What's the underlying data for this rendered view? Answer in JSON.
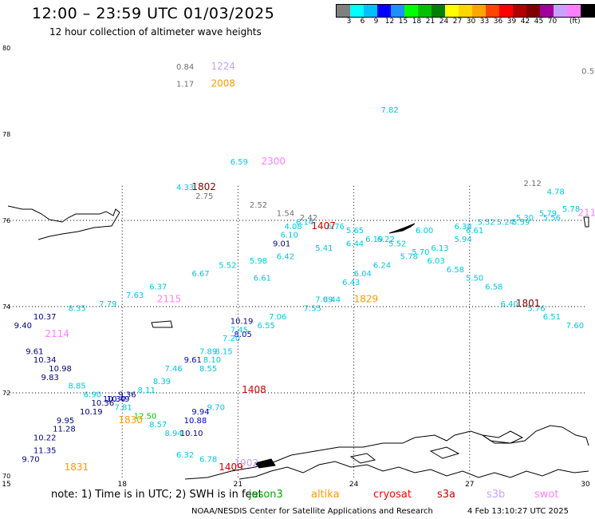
{
  "title": "12:00 – 23:59 UTC 01/03/2025",
  "subtitle": "12 hour collection of altimeter wave heights",
  "legend": {
    "colors": [
      "#808080",
      "#00ffff",
      "#00bfff",
      "#0000ff",
      "#1e90ff",
      "#00ff00",
      "#00c000",
      "#008000",
      "#ffff00",
      "#ffd700",
      "#ffa500",
      "#ff4500",
      "#ff0000",
      "#b00000",
      "#800000",
      "#a000a0",
      "#c8a0ff",
      "#ff80ff",
      "#000000"
    ],
    "labels": [
      "3",
      "6",
      "9",
      "12",
      "15",
      "18",
      "21",
      "24",
      "27",
      "30",
      "33",
      "36",
      "39",
      "42",
      "45",
      "70"
    ],
    "unit": "(ft)"
  },
  "footer": {
    "note": "note: 1) Time is in UTC; 2) SWH is in feet",
    "satellites": [
      {
        "name": "jason3",
        "color": "#00aa00"
      },
      {
        "name": "altika",
        "color": "#ff9900"
      },
      {
        "name": "cryosat",
        "color": "#ff0000"
      },
      {
        "name": "s3a",
        "color": "#cc0000"
      },
      {
        "name": "s3b",
        "color": "#c8a0ff"
      },
      {
        "name": "swot",
        "color": "#ff80ff"
      }
    ],
    "credit": "NOAA/NESDIS Center for Satellite Applications and Research",
    "timestamp": "4 Feb 13:10:27 UTC 2025"
  },
  "chart_data": {
    "type": "scatter",
    "xlim": [
      15,
      30
    ],
    "ylim": [
      70,
      80
    ],
    "x_ticks": [
      15,
      18,
      21,
      24,
      27,
      30
    ],
    "y_ticks": [
      70,
      72,
      74,
      76,
      78,
      80
    ],
    "grid": true,
    "colors": {
      "cyan": "#00c8e0",
      "blue": "#0000cc",
      "navy": "#000080",
      "gray": "#707070",
      "green": "#00cc00"
    },
    "pass_labels": [
      {
        "text": "1224",
        "x": 20.3,
        "y": 79.5,
        "color": "#c8a0ff"
      },
      {
        "text": "2008",
        "x": 20.3,
        "y": 79.1,
        "color": "#ff9900"
      },
      {
        "text": "2300",
        "x": 21.6,
        "y": 77.3,
        "color": "#ff80ff"
      },
      {
        "text": "1802",
        "x": 19.8,
        "y": 76.7,
        "color": "#800000"
      },
      {
        "text": "1407",
        "x": 22.9,
        "y": 75.8,
        "color": "#cc0000"
      },
      {
        "text": "1829",
        "x": 24.0,
        "y": 74.1,
        "color": "#ff9900"
      },
      {
        "text": "1801",
        "x": 28.2,
        "y": 74.0,
        "color": "#800000"
      },
      {
        "text": "2115",
        "x": 18.9,
        "y": 74.1,
        "color": "#ff80ff"
      },
      {
        "text": "2114",
        "x": 16.0,
        "y": 73.3,
        "color": "#ff80ff"
      },
      {
        "text": "211",
        "x": 29.8,
        "y": 76.1,
        "color": "#ff80ff"
      },
      {
        "text": "1408",
        "x": 21.1,
        "y": 72.0,
        "color": "#cc0000"
      },
      {
        "text": "1830",
        "x": 17.9,
        "y": 71.3,
        "color": "#ff9900"
      },
      {
        "text": "1831",
        "x": 16.5,
        "y": 70.2,
        "color": "#ff9900"
      },
      {
        "text": "1902",
        "x": 20.9,
        "y": 70.3,
        "color": "#c8a0ff"
      },
      {
        "text": "1409",
        "x": 20.5,
        "y": 70.2,
        "color": "#cc0000"
      }
    ],
    "points": [
      {
        "v": "0.84",
        "x": 19.4,
        "y": 79.5,
        "c": "gray"
      },
      {
        "v": "1.17",
        "x": 19.4,
        "y": 79.1,
        "c": "gray"
      },
      {
        "v": "0.5",
        "x": 29.9,
        "y": 79.4,
        "c": "gray"
      },
      {
        "v": "7.82",
        "x": 24.7,
        "y": 78.5,
        "c": "cyan"
      },
      {
        "v": "6.59",
        "x": 20.8,
        "y": 77.3,
        "c": "cyan"
      },
      {
        "v": "4.33",
        "x": 19.4,
        "y": 76.7,
        "c": "cyan"
      },
      {
        "v": "2.75",
        "x": 19.9,
        "y": 76.5,
        "c": "gray"
      },
      {
        "v": "2.52",
        "x": 21.3,
        "y": 76.3,
        "c": "gray"
      },
      {
        "v": "2.12",
        "x": 28.4,
        "y": 76.8,
        "c": "gray"
      },
      {
        "v": "4.78",
        "x": 29.0,
        "y": 76.6,
        "c": "cyan"
      },
      {
        "v": "1.54",
        "x": 22.0,
        "y": 76.1,
        "c": "gray"
      },
      {
        "v": "2.42",
        "x": 22.6,
        "y": 76.0,
        "c": "gray"
      },
      {
        "v": "6.14",
        "x": 22.5,
        "y": 75.9,
        "c": "cyan"
      },
      {
        "v": "6.76",
        "x": 23.3,
        "y": 75.8,
        "c": "cyan"
      },
      {
        "v": "4.08",
        "x": 22.2,
        "y": 75.8,
        "c": "cyan"
      },
      {
        "v": "5.78",
        "x": 29.4,
        "y": 76.2,
        "c": "cyan"
      },
      {
        "v": "5.79",
        "x": 28.8,
        "y": 76.1,
        "c": "cyan"
      },
      {
        "v": "5.56",
        "x": 28.9,
        "y": 76.0,
        "c": "cyan"
      },
      {
        "v": "5.30",
        "x": 28.2,
        "y": 76.0,
        "c": "cyan"
      },
      {
        "v": "5.59",
        "x": 28.1,
        "y": 75.9,
        "c": "cyan"
      },
      {
        "v": "5.24",
        "x": 27.7,
        "y": 75.9,
        "c": "cyan"
      },
      {
        "v": "5.52",
        "x": 27.2,
        "y": 75.9,
        "c": "cyan"
      },
      {
        "v": "6.38",
        "x": 26.6,
        "y": 75.8,
        "c": "cyan"
      },
      {
        "v": "6.61",
        "x": 26.9,
        "y": 75.7,
        "c": "cyan"
      },
      {
        "v": "5.94",
        "x": 26.6,
        "y": 75.5,
        "c": "cyan"
      },
      {
        "v": "6.00",
        "x": 25.6,
        "y": 75.7,
        "c": "cyan"
      },
      {
        "v": "5.65",
        "x": 23.8,
        "y": 75.7,
        "c": "cyan"
      },
      {
        "v": "6.10",
        "x": 22.1,
        "y": 75.6,
        "c": "cyan"
      },
      {
        "v": "6.19",
        "x": 24.3,
        "y": 75.5,
        "c": "cyan"
      },
      {
        "v": "6.22",
        "x": 24.6,
        "y": 75.5,
        "c": "cyan"
      },
      {
        "v": "6.44",
        "x": 23.8,
        "y": 75.4,
        "c": "cyan"
      },
      {
        "v": "5.52",
        "x": 24.9,
        "y": 75.4,
        "c": "cyan"
      },
      {
        "v": "9.01",
        "x": 21.9,
        "y": 75.4,
        "c": "navy"
      },
      {
        "v": "5.41",
        "x": 23.0,
        "y": 75.3,
        "c": "cyan"
      },
      {
        "v": "6.13",
        "x": 26.0,
        "y": 75.3,
        "c": "cyan"
      },
      {
        "v": "5.70",
        "x": 25.5,
        "y": 75.2,
        "c": "cyan"
      },
      {
        "v": "5.78",
        "x": 25.2,
        "y": 75.1,
        "c": "cyan"
      },
      {
        "v": "6.42",
        "x": 22.0,
        "y": 75.1,
        "c": "cyan"
      },
      {
        "v": "5.98",
        "x": 21.3,
        "y": 75.0,
        "c": "cyan"
      },
      {
        "v": "6.03",
        "x": 25.9,
        "y": 75.0,
        "c": "cyan"
      },
      {
        "v": "6.24",
        "x": 24.5,
        "y": 74.9,
        "c": "cyan"
      },
      {
        "v": "6.58",
        "x": 26.4,
        "y": 74.8,
        "c": "cyan"
      },
      {
        "v": "5.52",
        "x": 20.5,
        "y": 74.9,
        "c": "cyan"
      },
      {
        "v": "6.67",
        "x": 19.8,
        "y": 74.7,
        "c": "cyan"
      },
      {
        "v": "6.04",
        "x": 24.0,
        "y": 74.7,
        "c": "cyan"
      },
      {
        "v": "5.50",
        "x": 26.9,
        "y": 74.6,
        "c": "cyan"
      },
      {
        "v": "6.43",
        "x": 23.7,
        "y": 74.5,
        "c": "cyan"
      },
      {
        "v": "6.58",
        "x": 27.4,
        "y": 74.4,
        "c": "cyan"
      },
      {
        "v": "6.61",
        "x": 21.4,
        "y": 74.6,
        "c": "cyan"
      },
      {
        "v": "6.37",
        "x": 18.7,
        "y": 74.4,
        "c": "cyan"
      },
      {
        "v": "7.63",
        "x": 18.1,
        "y": 74.2,
        "c": "cyan"
      },
      {
        "v": "7.79",
        "x": 17.4,
        "y": 74.0,
        "c": "cyan"
      },
      {
        "v": "6.40",
        "x": 27.8,
        "y": 74.0,
        "c": "cyan"
      },
      {
        "v": "7.55",
        "x": 22.7,
        "y": 73.9,
        "c": "cyan"
      },
      {
        "v": "7.09",
        "x": 23.0,
        "y": 74.1,
        "c": "cyan"
      },
      {
        "v": "6.44",
        "x": 23.2,
        "y": 74.1,
        "c": "cyan"
      },
      {
        "v": "5.76",
        "x": 28.5,
        "y": 73.9,
        "c": "cyan"
      },
      {
        "v": "8.35",
        "x": 16.6,
        "y": 73.9,
        "c": "cyan"
      },
      {
        "v": "10.37",
        "x": 15.7,
        "y": 73.7,
        "c": "navy"
      },
      {
        "v": "7.06",
        "x": 21.8,
        "y": 73.7,
        "c": "cyan"
      },
      {
        "v": "6.51",
        "x": 28.9,
        "y": 73.7,
        "c": "cyan"
      },
      {
        "v": "9.40",
        "x": 15.2,
        "y": 73.5,
        "c": "navy"
      },
      {
        "v": "10.19",
        "x": 20.8,
        "y": 73.6,
        "c": "navy"
      },
      {
        "v": "6.55",
        "x": 21.5,
        "y": 73.5,
        "c": "cyan"
      },
      {
        "v": "7.60",
        "x": 29.5,
        "y": 73.5,
        "c": "cyan"
      },
      {
        "v": "7.45",
        "x": 20.8,
        "y": 73.4,
        "c": "cyan"
      },
      {
        "v": "8.05",
        "x": 20.9,
        "y": 73.3,
        "c": "blue"
      },
      {
        "v": "7.20",
        "x": 20.6,
        "y": 73.2,
        "c": "cyan"
      },
      {
        "v": "7.89",
        "x": 20.0,
        "y": 72.9,
        "c": "cyan"
      },
      {
        "v": "9.61",
        "x": 15.5,
        "y": 72.9,
        "c": "navy"
      },
      {
        "v": "8.15",
        "x": 20.4,
        "y": 72.9,
        "c": "cyan"
      },
      {
        "v": "10.34",
        "x": 15.7,
        "y": 72.7,
        "c": "navy"
      },
      {
        "v": "9.61",
        "x": 19.6,
        "y": 72.7,
        "c": "blue"
      },
      {
        "v": "8.10",
        "x": 20.1,
        "y": 72.7,
        "c": "cyan"
      },
      {
        "v": "10.98",
        "x": 16.1,
        "y": 72.5,
        "c": "navy"
      },
      {
        "v": "7.46",
        "x": 19.1,
        "y": 72.5,
        "c": "cyan"
      },
      {
        "v": "8.55",
        "x": 20.0,
        "y": 72.5,
        "c": "cyan"
      },
      {
        "v": "9.83",
        "x": 15.9,
        "y": 72.3,
        "c": "navy"
      },
      {
        "v": "8.39",
        "x": 18.8,
        "y": 72.2,
        "c": "cyan"
      },
      {
        "v": "8.85",
        "x": 16.6,
        "y": 72.1,
        "c": "cyan"
      },
      {
        "v": "8.11",
        "x": 18.4,
        "y": 72.0,
        "c": "cyan"
      },
      {
        "v": "6.90",
        "x": 17.0,
        "y": 71.9,
        "c": "cyan"
      },
      {
        "v": "9.36",
        "x": 17.9,
        "y": 71.9,
        "c": "navy"
      },
      {
        "v": "10.30",
        "x": 17.5,
        "y": 71.8,
        "c": "blue"
      },
      {
        "v": "10.49",
        "x": 17.6,
        "y": 71.8,
        "c": "navy"
      },
      {
        "v": "10.36",
        "x": 17.2,
        "y": 71.7,
        "c": "navy"
      },
      {
        "v": "7.81",
        "x": 17.8,
        "y": 71.6,
        "c": "cyan"
      },
      {
        "v": "9.70",
        "x": 20.2,
        "y": 71.6,
        "c": "cyan"
      },
      {
        "v": "10.19",
        "x": 16.9,
        "y": 71.5,
        "c": "navy"
      },
      {
        "v": "9.94",
        "x": 19.8,
        "y": 71.5,
        "c": "blue"
      },
      {
        "v": "12.50",
        "x": 18.3,
        "y": 71.4,
        "c": "green"
      },
      {
        "v": "9.95",
        "x": 16.3,
        "y": 71.3,
        "c": "navy"
      },
      {
        "v": "10.88",
        "x": 19.6,
        "y": 71.3,
        "c": "blue"
      },
      {
        "v": "8.57",
        "x": 18.7,
        "y": 71.2,
        "c": "cyan"
      },
      {
        "v": "11.28",
        "x": 16.2,
        "y": 71.1,
        "c": "navy"
      },
      {
        "v": "8.94",
        "x": 19.1,
        "y": 71.0,
        "c": "cyan"
      },
      {
        "v": "10.10",
        "x": 19.5,
        "y": 71.0,
        "c": "navy"
      },
      {
        "v": "10.22",
        "x": 15.7,
        "y": 70.9,
        "c": "navy"
      },
      {
        "v": "11.35",
        "x": 15.7,
        "y": 70.6,
        "c": "navy"
      },
      {
        "v": "9.70",
        "x": 15.4,
        "y": 70.4,
        "c": "navy"
      },
      {
        "v": "6.32",
        "x": 19.4,
        "y": 70.5,
        "c": "cyan"
      },
      {
        "v": "6.78",
        "x": 20.0,
        "y": 70.4,
        "c": "cyan"
      }
    ]
  }
}
